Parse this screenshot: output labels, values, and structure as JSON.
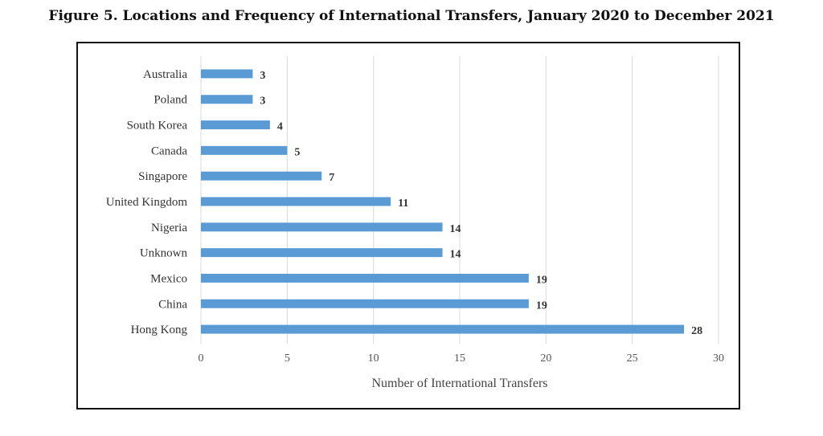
{
  "figure": {
    "title": "Figure 5.  Locations and Frequency of International Transfers, January 2020 to December 2021"
  },
  "colors": {
    "bar": "#5b9bd5",
    "grid": "#d9d9d9",
    "frame": "#111111"
  },
  "chart_data": {
    "type": "bar",
    "orientation": "horizontal",
    "title": "",
    "categories": [
      "Australia",
      "Poland",
      "South Korea",
      "Canada",
      "Singapore",
      "United Kingdom",
      "Nigeria",
      "Unknown",
      "Mexico",
      "China",
      "Hong Kong"
    ],
    "values": [
      3,
      3,
      4,
      5,
      7,
      11,
      14,
      14,
      19,
      19,
      28
    ],
    "data_labels": [
      "3",
      "3",
      "4",
      "5",
      "7",
      "11",
      "14",
      "14",
      "19",
      "19",
      "28"
    ],
    "xlabel": "Number of International Transfers",
    "ylabel": "",
    "xlim": [
      0,
      30
    ],
    "xticks": [
      "0",
      "5",
      "10",
      "15",
      "20",
      "25",
      "30"
    ],
    "grid": "vertical",
    "legend": "none"
  }
}
